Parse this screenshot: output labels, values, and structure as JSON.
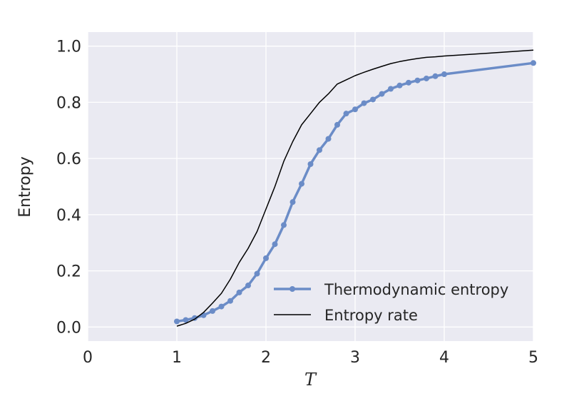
{
  "chart_data": {
    "type": "line",
    "xlabel": "T",
    "ylabel": "Entropy",
    "xlim": [
      0,
      5
    ],
    "ylim": [
      -0.05,
      1.05
    ],
    "xticks": [
      "0",
      "1",
      "2",
      "3",
      "4",
      "5"
    ],
    "yticks": [
      "0.0",
      "0.2",
      "0.4",
      "0.6",
      "0.8",
      "1.0"
    ],
    "grid": true,
    "legend_position": "lower-right",
    "series": [
      {
        "name": "Thermodynamic entropy",
        "color": "#6b8cc7",
        "marker": "circle",
        "x": [
          1.0,
          1.1,
          1.2,
          1.3,
          1.4,
          1.5,
          1.6,
          1.7,
          1.8,
          1.9,
          2.0,
          2.1,
          2.2,
          2.3,
          2.4,
          2.5,
          2.6,
          2.7,
          2.8,
          2.9,
          3.0,
          3.1,
          3.2,
          3.3,
          3.4,
          3.5,
          3.6,
          3.7,
          3.8,
          3.9,
          4.0,
          5.0
        ],
        "y": [
          0.02,
          0.025,
          0.032,
          0.042,
          0.057,
          0.073,
          0.093,
          0.123,
          0.148,
          0.19,
          0.245,
          0.295,
          0.363,
          0.445,
          0.51,
          0.58,
          0.63,
          0.67,
          0.72,
          0.76,
          0.775,
          0.797,
          0.81,
          0.83,
          0.848,
          0.86,
          0.87,
          0.878,
          0.885,
          0.893,
          0.9,
          0.94
        ]
      },
      {
        "name": "Entropy rate",
        "color": "#000000",
        "marker": "none",
        "x": [
          1.0,
          1.1,
          1.2,
          1.3,
          1.4,
          1.5,
          1.6,
          1.7,
          1.8,
          1.9,
          2.0,
          2.1,
          2.2,
          2.3,
          2.4,
          2.5,
          2.6,
          2.7,
          2.8,
          2.9,
          3.0,
          3.1,
          3.2,
          3.3,
          3.4,
          3.5,
          3.6,
          3.7,
          3.8,
          3.9,
          4.0,
          4.5,
          5.0
        ],
        "y": [
          0.003,
          0.013,
          0.028,
          0.052,
          0.085,
          0.12,
          0.17,
          0.23,
          0.28,
          0.34,
          0.42,
          0.5,
          0.59,
          0.66,
          0.72,
          0.76,
          0.8,
          0.83,
          0.865,
          0.88,
          0.895,
          0.907,
          0.918,
          0.928,
          0.938,
          0.945,
          0.951,
          0.956,
          0.96,
          0.962,
          0.965,
          0.975,
          0.986
        ]
      }
    ]
  }
}
